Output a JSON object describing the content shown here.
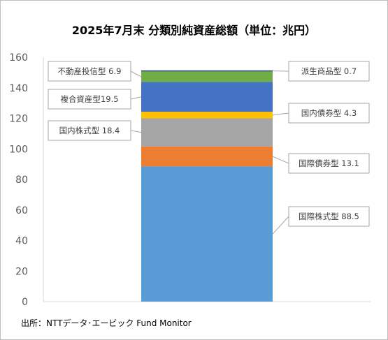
{
  "title": "2025年7月末 分類別純資産総額（単位：兆円）",
  "source": "出所：NTTデータ･エービック Fund Monitor",
  "chart_data": {
    "type": "bar",
    "stacked": true,
    "categories": [
      ""
    ],
    "ylim": [
      0,
      160
    ],
    "yticks": [
      0,
      20,
      40,
      60,
      80,
      100,
      120,
      140,
      160
    ],
    "grid": false,
    "legend": "none",
    "series": [
      {
        "name": "国際株式型",
        "values": [
          88.5
        ],
        "color": "#5b9bd5",
        "label": "国際株式型 88.5"
      },
      {
        "name": "国際債券型",
        "values": [
          13.1
        ],
        "color": "#ed7d31",
        "label": "国際債券型 13.1"
      },
      {
        "name": "国内株式型",
        "values": [
          18.4
        ],
        "color": "#a5a5a5",
        "label": "国内株式型 18.4"
      },
      {
        "name": "国内債券型",
        "values": [
          4.3
        ],
        "color": "#ffc000",
        "label": "国内債券型 4.3"
      },
      {
        "name": "複合資産型",
        "values": [
          19.5
        ],
        "color": "#4472c4",
        "label": "複合資産型19.5"
      },
      {
        "name": "不動産投信型",
        "values": [
          6.9
        ],
        "color": "#70ad47",
        "label": "不動産投信型 6.9"
      },
      {
        "name": "派生商品型",
        "values": [
          0.7
        ],
        "color": "#264478",
        "label": "派生商品型 0.7"
      }
    ]
  }
}
